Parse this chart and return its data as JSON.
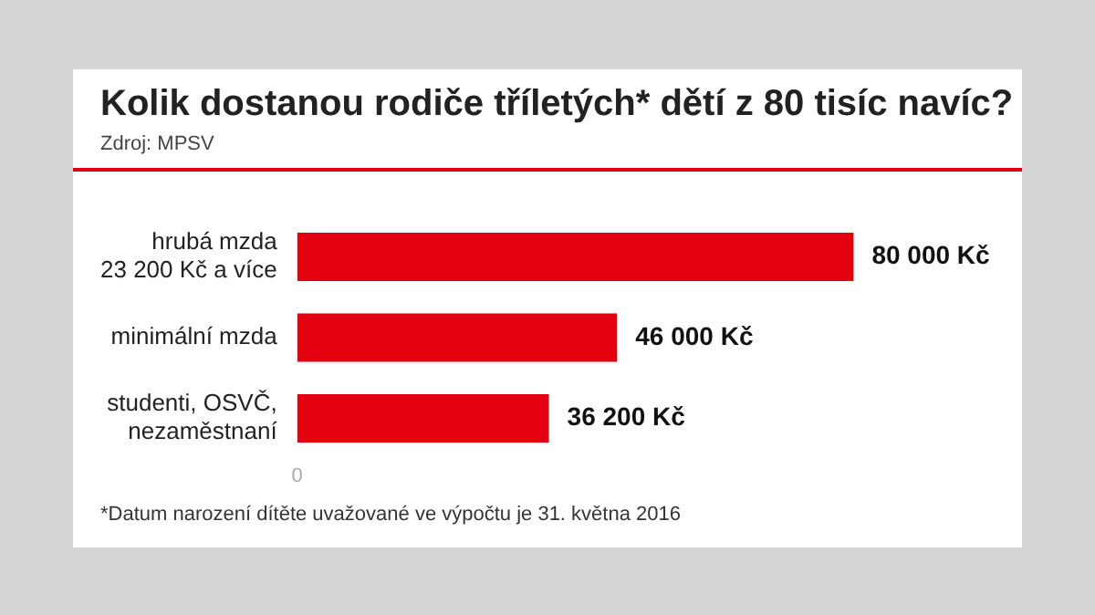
{
  "chart_data": {
    "type": "bar",
    "orientation": "horizontal",
    "title": "Kolik dostanou rodiče tříletých* dětí z 80 tisíc navíc?",
    "subtitle": "Zdroj: MPSV",
    "categories": [
      "hrubá mzda\n23 200 Kč a více",
      "minimální mzda",
      "studenti, OSVČ,\nnezaměstnaní"
    ],
    "values": [
      80000,
      46000,
      36200
    ],
    "value_labels": [
      "80 000 Kč",
      "46 000 Kč",
      "36 200 Kč"
    ],
    "color": "#e3000f",
    "legend": false,
    "annotations": [
      "0",
      "*Datum narození dítěte uvažované ve výpočtu je 31. května 2016"
    ]
  }
}
